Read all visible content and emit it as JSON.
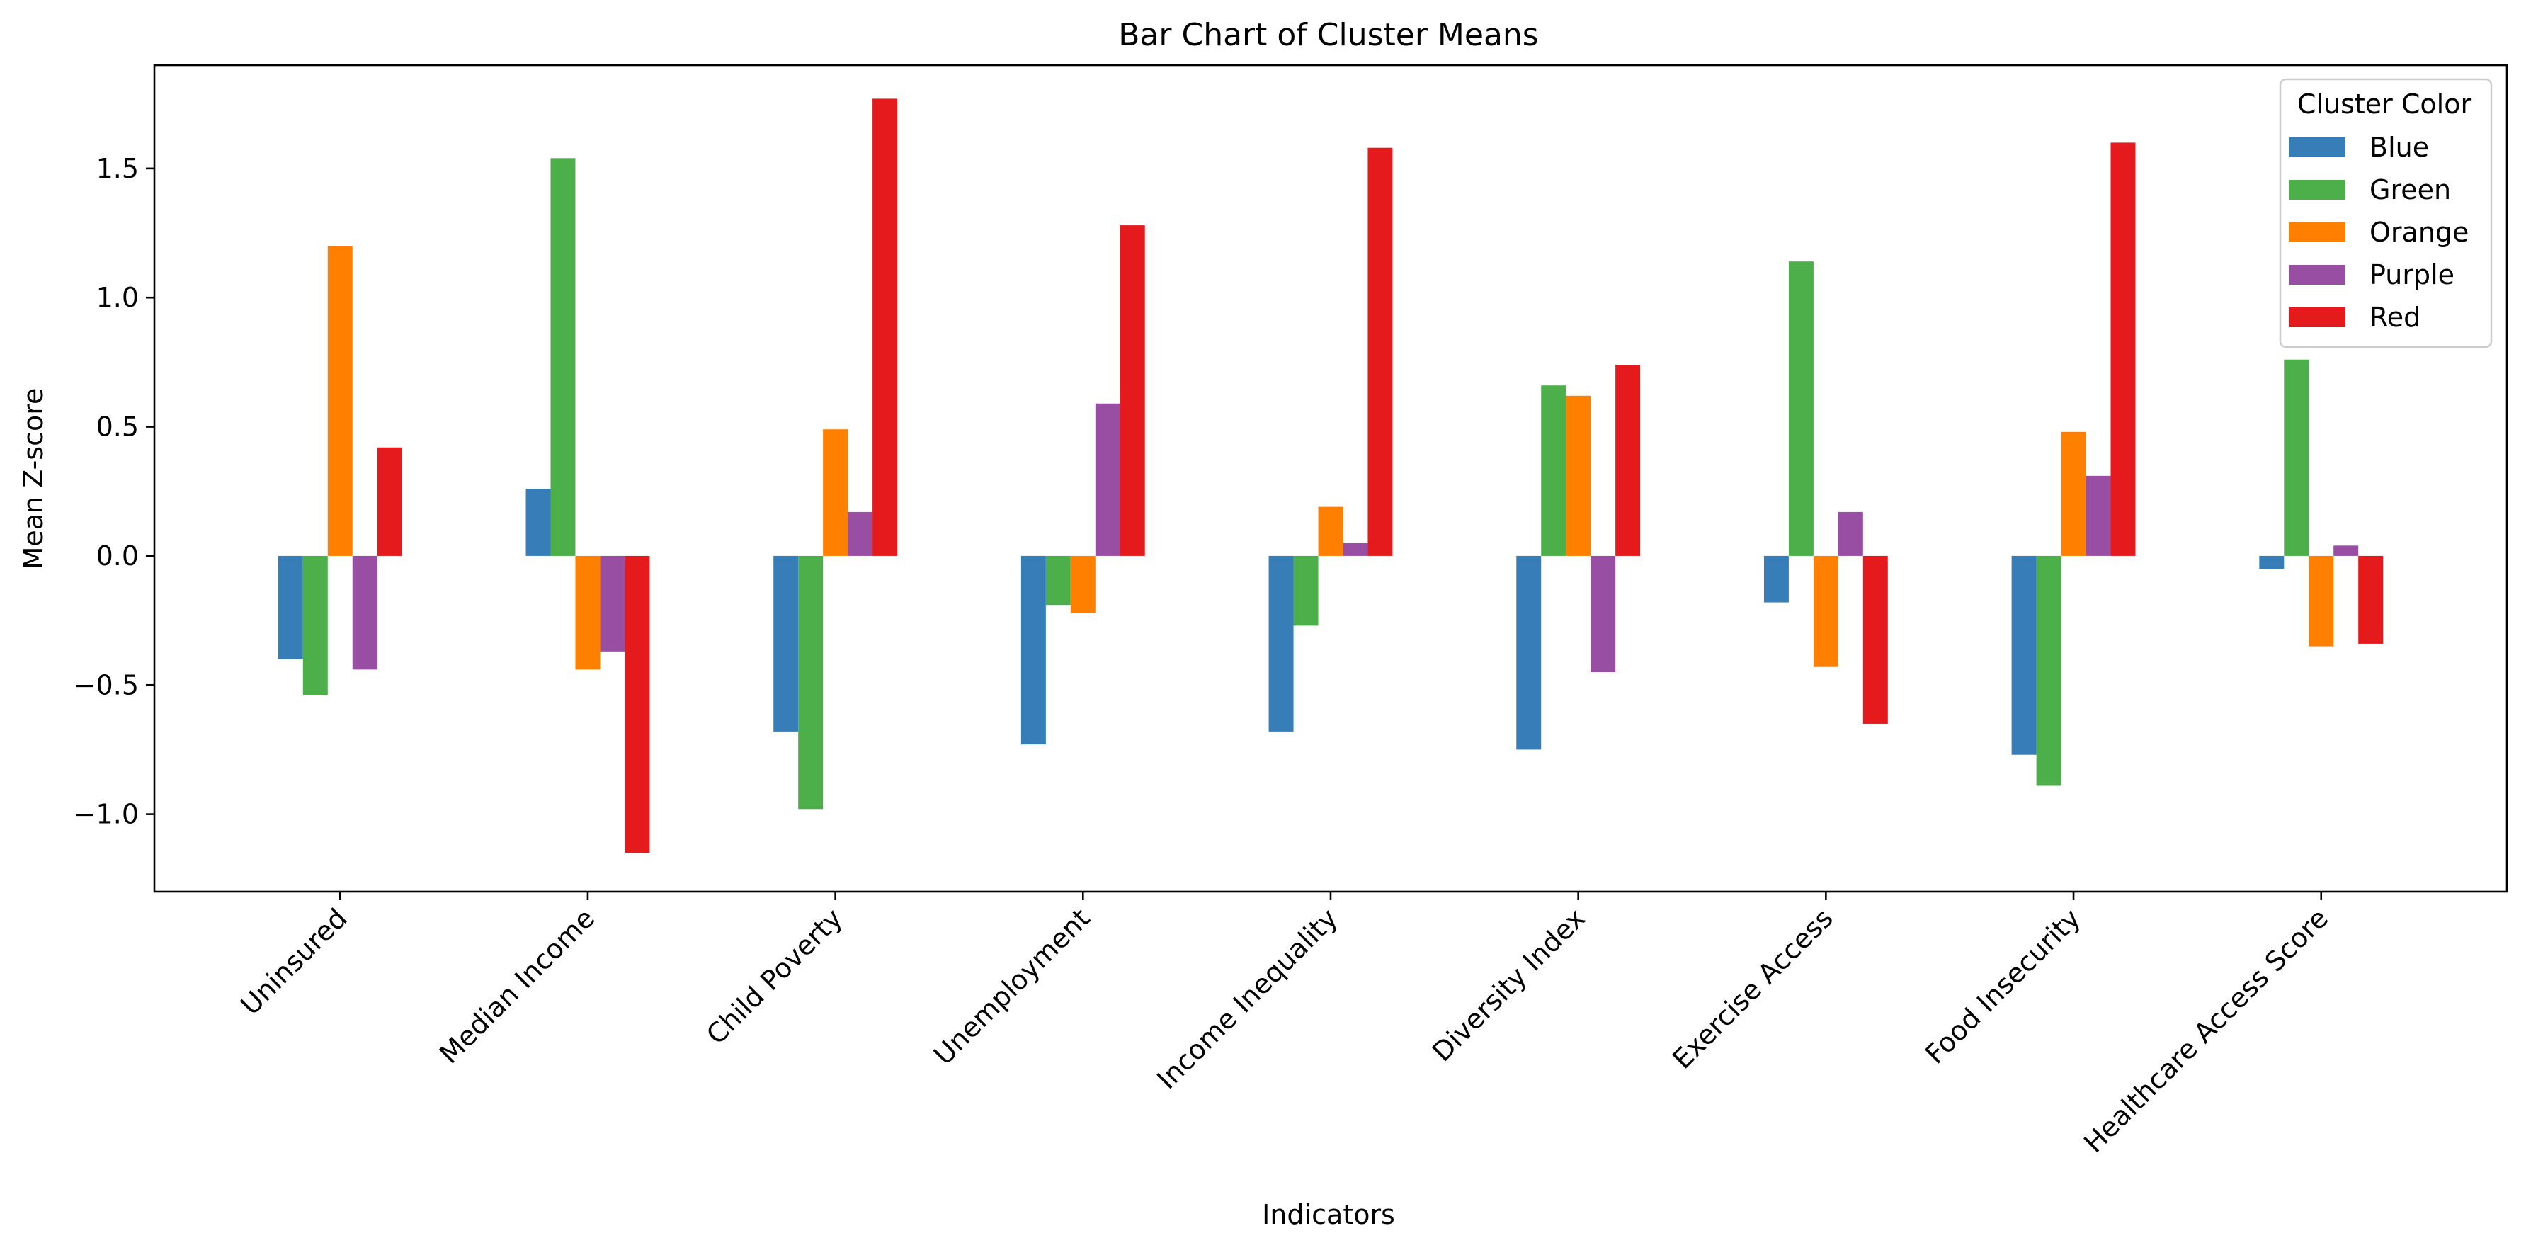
{
  "chart_data": {
    "type": "bar",
    "title": "Bar Chart of Cluster Means",
    "xlabel": "Indicators",
    "ylabel": "Mean Z-score",
    "ylim": [
      -1.3,
      1.9
    ],
    "yticks": [
      -1.0,
      -0.5,
      0.0,
      0.5,
      1.0,
      1.5
    ],
    "ytick_labels": [
      "−1.0",
      "−0.5",
      "0.0",
      "0.5",
      "1.0",
      "1.5"
    ],
    "categories": [
      "Uninsured",
      "Median Income",
      "Child Poverty",
      "Unemployment",
      "Income Inequality",
      "Diversity Index",
      "Exercise Access",
      "Food Insecurity",
      "Healthcare Access Score"
    ],
    "legend_title": "Cluster Color",
    "legend_position": "top-right",
    "grid": false,
    "series": [
      {
        "name": "Blue",
        "color": "#377eb8",
        "values": [
          -0.4,
          0.26,
          -0.68,
          -0.73,
          -0.68,
          -0.75,
          -0.18,
          -0.77,
          -0.05
        ]
      },
      {
        "name": "Green",
        "color": "#4daf4a",
        "values": [
          -0.54,
          1.54,
          -0.98,
          -0.19,
          -0.27,
          0.66,
          1.14,
          -0.89,
          0.76
        ]
      },
      {
        "name": "Orange",
        "color": "#ff7f00",
        "values": [
          1.2,
          -0.44,
          0.49,
          -0.22,
          0.19,
          0.62,
          -0.43,
          0.48,
          -0.35
        ]
      },
      {
        "name": "Purple",
        "color": "#984ea3",
        "values": [
          -0.44,
          -0.37,
          0.17,
          0.59,
          0.05,
          -0.45,
          0.17,
          0.31,
          0.04
        ]
      },
      {
        "name": "Red",
        "color": "#e41a1c",
        "values": [
          0.42,
          -1.15,
          1.77,
          1.28,
          1.58,
          0.74,
          -0.65,
          1.6,
          -0.34
        ]
      }
    ]
  }
}
